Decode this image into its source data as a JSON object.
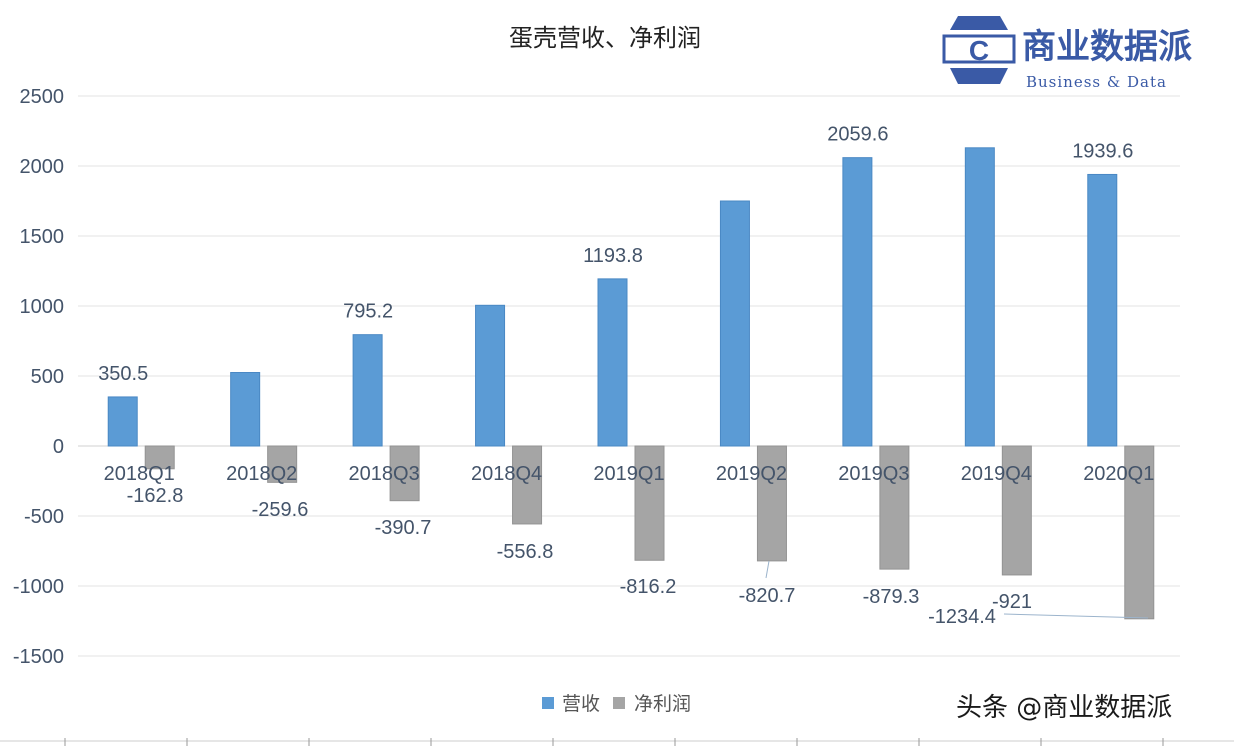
{
  "chart_data": {
    "type": "bar",
    "title": "蛋壳营收、净利润",
    "categories": [
      "2018Q1",
      "2018Q2",
      "2018Q3",
      "2018Q4",
      "2019Q1",
      "2019Q2",
      "2019Q3",
      "2019Q4",
      "2020Q1"
    ],
    "series": [
      {
        "name": "营收",
        "color": "#5b9bd5",
        "values": [
          350.5,
          525,
          795.2,
          1005,
          1193.8,
          1750,
          2059.6,
          2130,
          1939.6
        ],
        "labels": [
          "350.5",
          "",
          "795.2",
          "",
          "1193.8",
          "",
          "2059.6",
          "",
          "1939.6"
        ]
      },
      {
        "name": "净利润",
        "color": "#a5a5a5",
        "values": [
          -162.8,
          -259.6,
          -390.7,
          -556.8,
          -816.2,
          -820.7,
          -879.3,
          -921,
          -1234.4
        ],
        "labels": [
          "-162.8",
          "-259.6",
          "-390.7",
          "-556.8",
          "-816.2",
          "-820.7",
          "-879.3",
          "-921",
          "-1234.4"
        ]
      }
    ],
    "yticks": [
      "2500",
      "2000",
      "1500",
      "1000",
      "500",
      "0",
      "-500",
      "-1000",
      "-1500"
    ],
    "ylim": [
      -1500,
      2500
    ],
    "xlabel": "",
    "ylabel": "",
    "grid": true,
    "legend_position": "bottom"
  },
  "logo": {
    "letter": "C",
    "name_cn": "商业数据派",
    "name_en": "Business & Data"
  },
  "watermark": "头条 @商业数据派"
}
